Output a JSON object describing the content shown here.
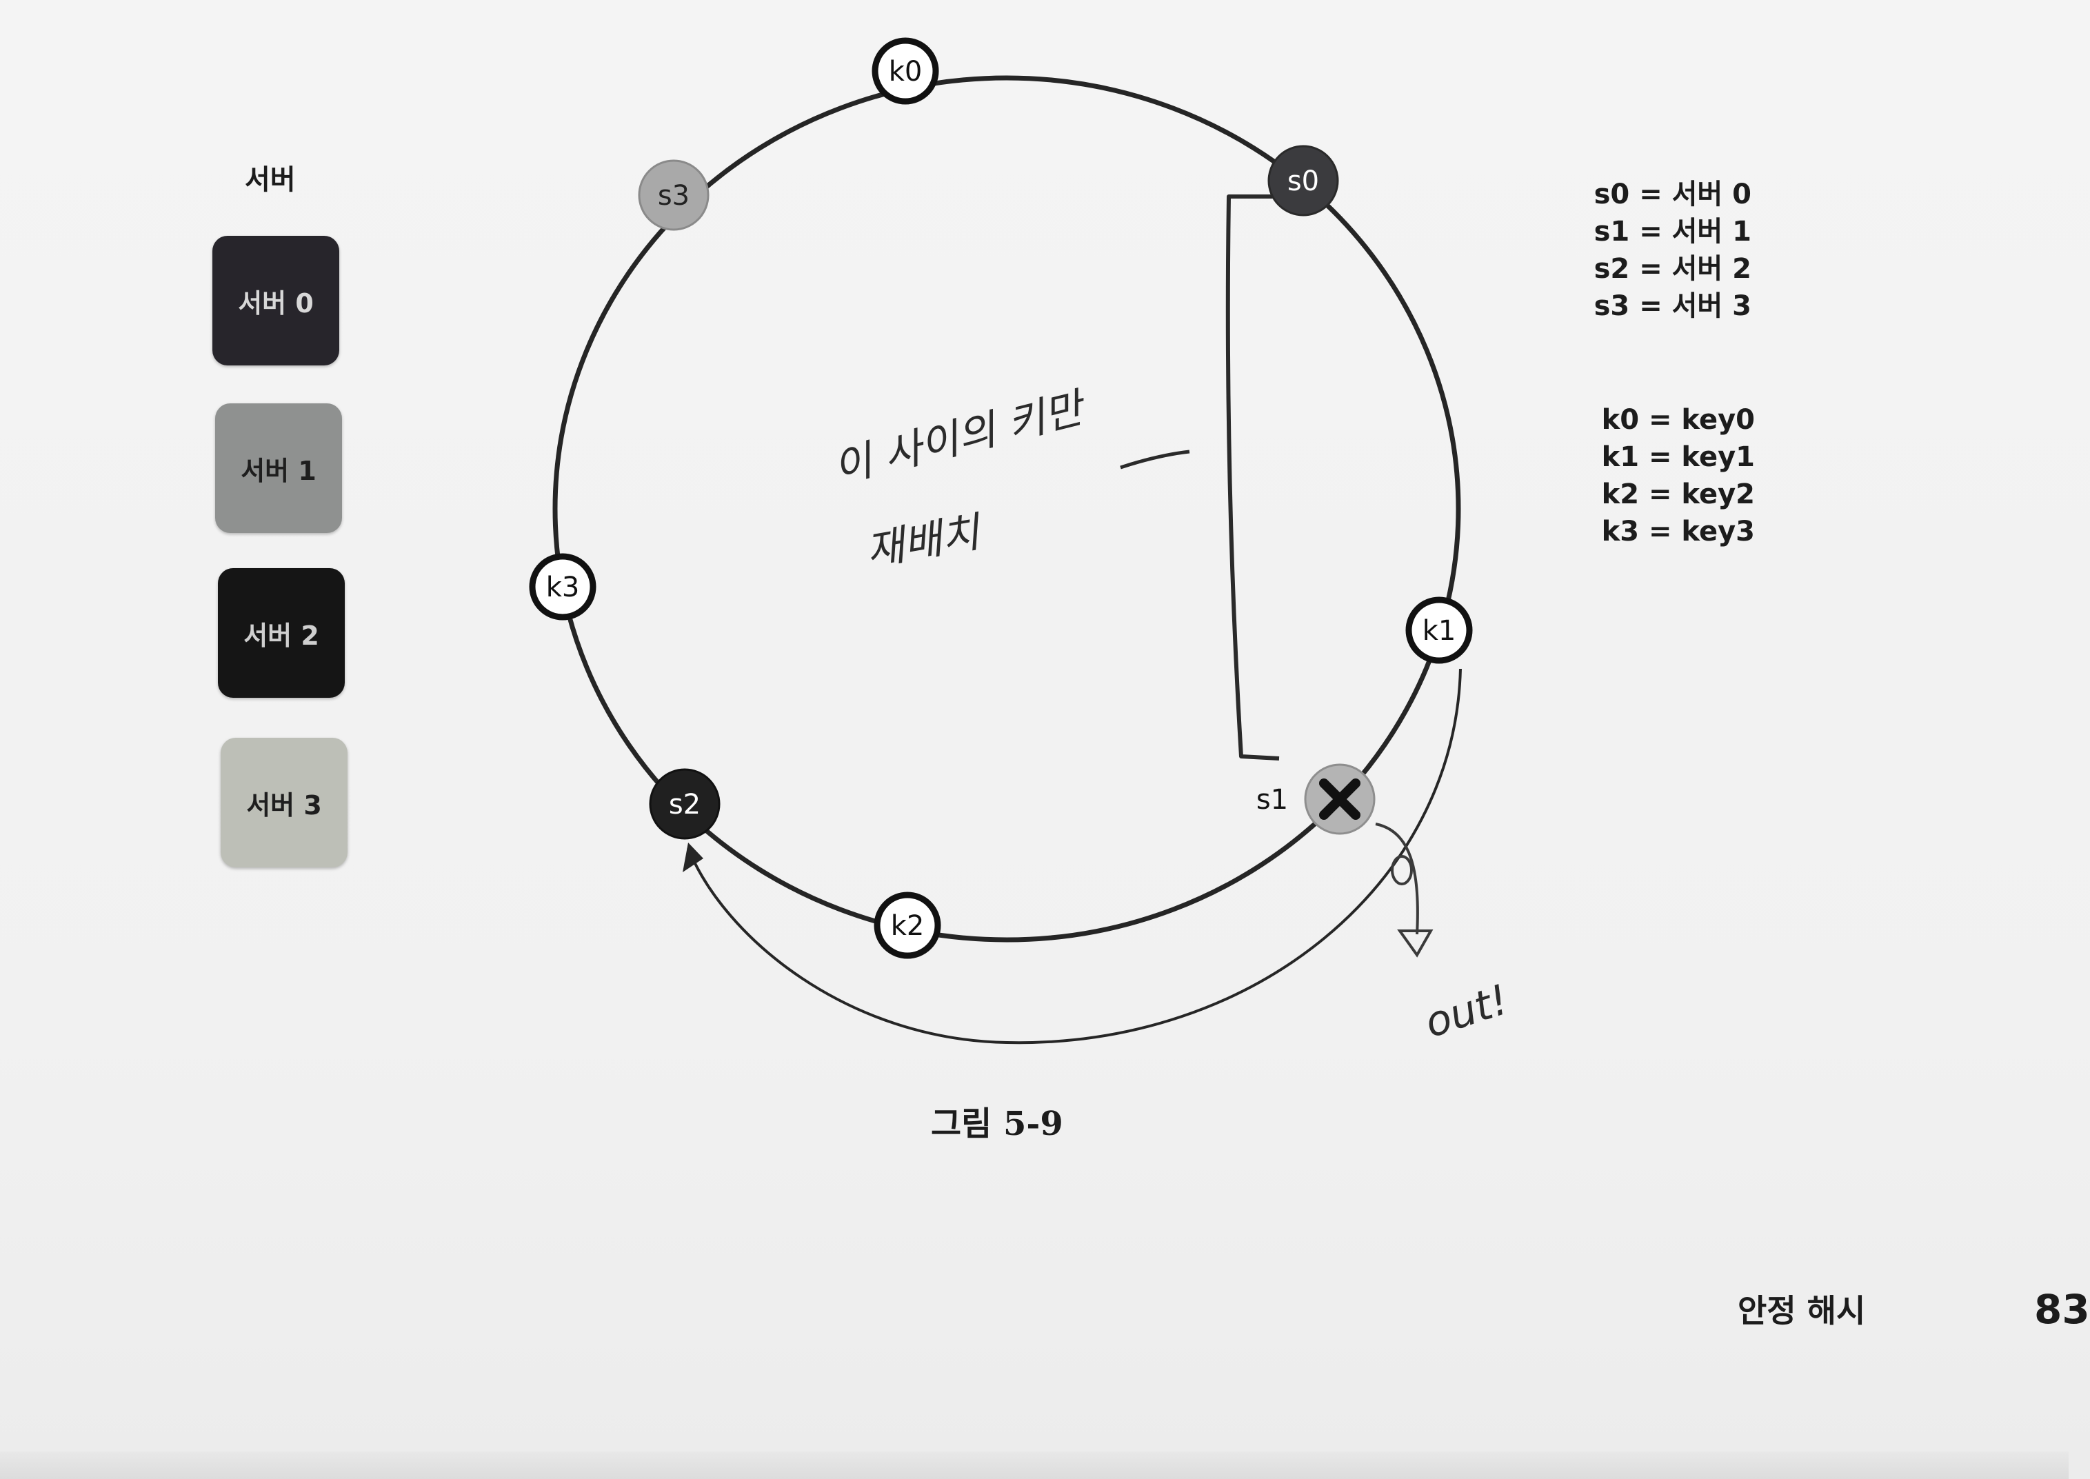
{
  "legend": {
    "title": "서버",
    "items": [
      {
        "label": "서버 0",
        "color": "#27252b",
        "text_color": "#d8d8d8"
      },
      {
        "label": "서버 1",
        "color": "#8f9190",
        "text_color": "#1e1e1e"
      },
      {
        "label": "서버 2",
        "color": "#151515",
        "text_color": "#cfcfcf"
      },
      {
        "label": "서버 3",
        "color": "#bdbfb7",
        "text_color": "#1e1e1e"
      }
    ]
  },
  "ring": {
    "servers": [
      {
        "label": "s0",
        "fill": "#3b3b3e",
        "text_color": "#ffffff"
      },
      {
        "label": "s1",
        "fill": "#b4b4b4",
        "removed": true
      },
      {
        "label": "s2",
        "fill": "#202020",
        "text_color": "#ffffff"
      },
      {
        "label": "s3",
        "fill": "#a9a9a9",
        "text_color": "#222222"
      }
    ],
    "keys": [
      {
        "label": "k0"
      },
      {
        "label": "k1"
      },
      {
        "label": "k2"
      },
      {
        "label": "k3"
      }
    ]
  },
  "abbreviations": {
    "servers": [
      "s0 = 서버 0",
      "s1 = 서버 1",
      "s2 = 서버 2",
      "s3 = 서버 3"
    ],
    "keys": [
      "k0 = key0",
      "k1 = key1",
      "k2 = key2",
      "k3 = key3"
    ]
  },
  "handwritten": {
    "note_line1": "이 사이의 키만",
    "note_line2": "재배치",
    "out": "out!"
  },
  "caption": "그림 5-9",
  "footer": {
    "running_title": "안정 해시",
    "page_number": "83"
  }
}
